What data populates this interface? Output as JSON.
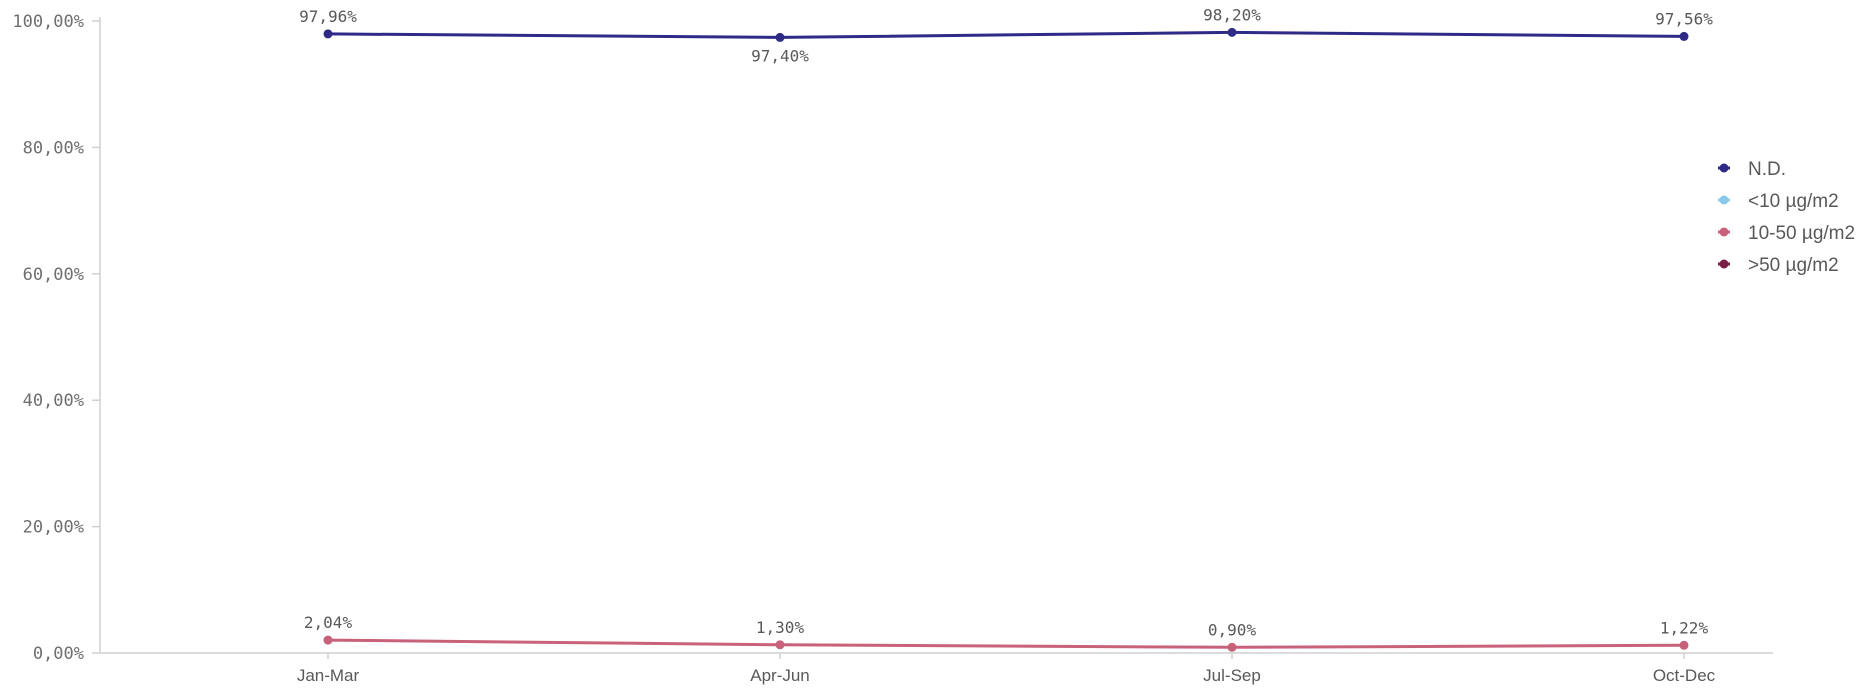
{
  "chart_data": {
    "type": "line",
    "title": "",
    "xlabel": "",
    "ylabel": "",
    "categories": [
      "Jan-Mar",
      "Apr-Jun",
      "Jul-Sep",
      "Oct-Dec"
    ],
    "ylim": [
      0,
      100
    ],
    "yticks": [
      0,
      20,
      40,
      60,
      80,
      100
    ],
    "ytick_labels": [
      "0,00%",
      "20,00%",
      "40,00%",
      "60,00%",
      "80,00%",
      "100,00%"
    ],
    "grid": false,
    "legend_position": "right",
    "series": [
      {
        "name": "N.D.",
        "color": "#2e2a86",
        "values": [
          97.96,
          97.4,
          98.2,
          97.56
        ],
        "labels": [
          "97,96%",
          "97,40%",
          "98,20%",
          "97,56%"
        ],
        "label_placement": [
          "above",
          "below",
          "above",
          "above"
        ]
      },
      {
        "name": "<10 µg/m2",
        "color": "#86c9ea",
        "values": [
          2.04,
          null,
          null,
          null
        ],
        "labels": [
          "2,04%",
          null,
          null,
          null
        ],
        "label_placement": [
          "above",
          "above",
          "above",
          "above"
        ]
      },
      {
        "name": "10-50 µg/m2",
        "color": "#c8627a",
        "values": [
          2.04,
          1.3,
          0.9,
          1.22
        ],
        "labels": [
          null,
          "1,30%",
          "0,90%",
          "1,22%"
        ],
        "label_placement": [
          "above",
          "above",
          "above",
          "above"
        ]
      },
      {
        "name": ">50 µg/m2",
        "color": "#7a1f45",
        "values": [
          null,
          null,
          null,
          null
        ],
        "labels": [
          null,
          null,
          null,
          null
        ],
        "label_placement": [
          "above",
          "above",
          "above",
          "above"
        ]
      }
    ]
  }
}
